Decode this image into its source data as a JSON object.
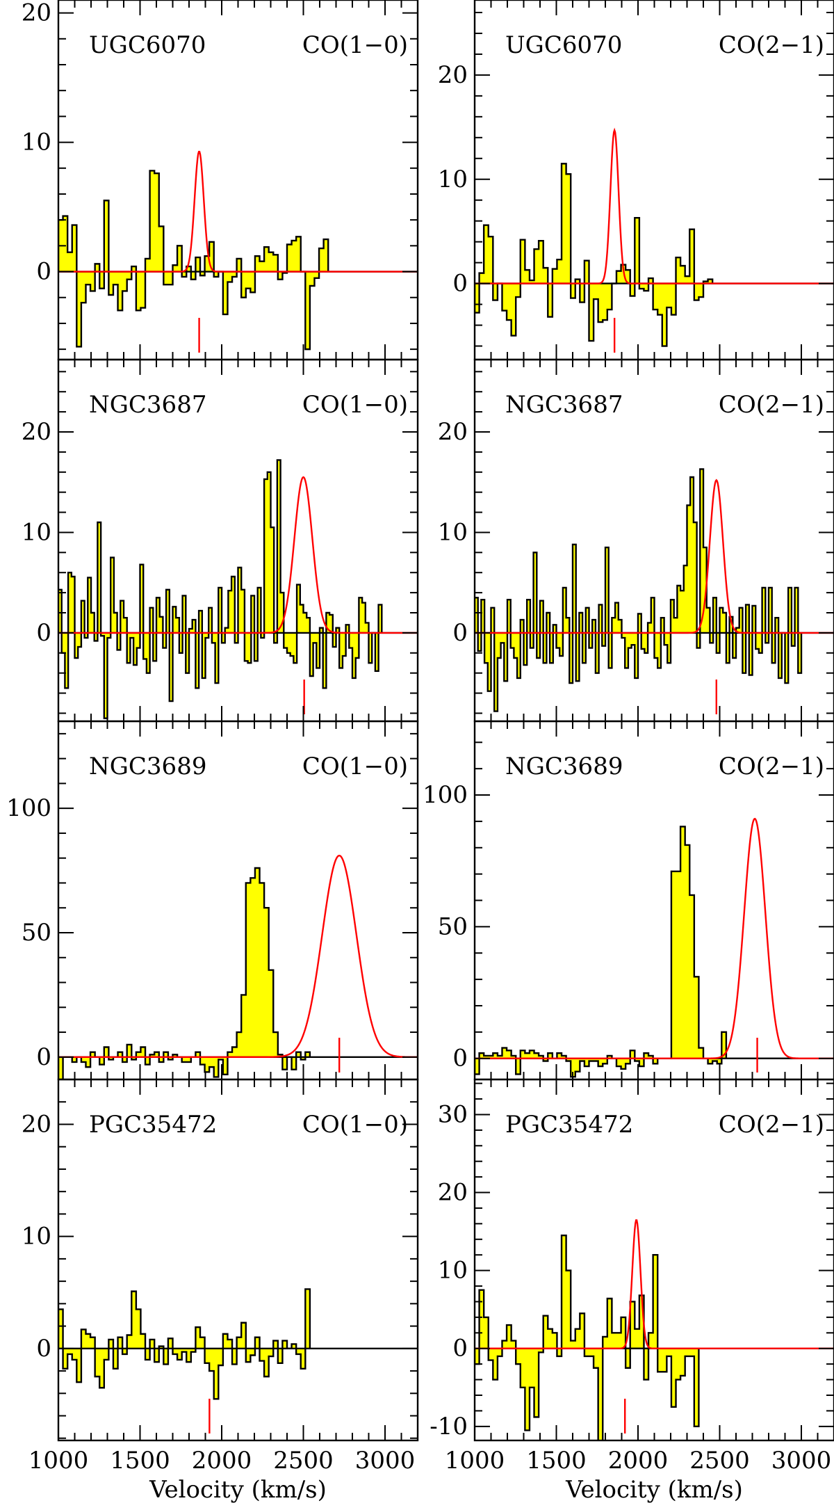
{
  "chart_data": {
    "type": "step-area spectra grid",
    "xlabel": "Velocity (km/s)",
    "xlim": [
      1000,
      3200
    ],
    "xticks": [
      1000,
      1500,
      2000,
      2500,
      3000
    ],
    "x_start": 1000,
    "colors": {
      "fill": "#ffff00",
      "fit": "#ff0000",
      "line": "#000000"
    },
    "panels": [
      {
        "galaxy": "UGC6070",
        "transition": "CO(1−0)",
        "ylim": [
          -6.8,
          21
        ],
        "yticks": [
          0,
          10,
          20
        ],
        "minor": 2,
        "channel_width": 28,
        "values": [
          4,
          4.3,
          1.5,
          3.6,
          -5.8,
          -2.4,
          -1,
          -1.5,
          0.6,
          -1.3,
          5.5,
          -1.8,
          -1,
          -3,
          -1.5,
          -0.6,
          0.4,
          -3,
          -2.8,
          1,
          7.8,
          7.6,
          3.5,
          -1,
          -1,
          0.5,
          2,
          -0.4,
          0.4,
          -0.6,
          1.1,
          -0.3,
          1.2,
          2.3,
          -0.4,
          0,
          -3.3,
          -0.8,
          -0.4,
          1,
          -2,
          -1.3,
          -1.6,
          1.2,
          0.8,
          1.9,
          1.5,
          1.3,
          -0.6,
          -0.1,
          2.1,
          2.4,
          2.7,
          0,
          -6,
          -1.1,
          -0.5,
          1.8,
          2.5
        ],
        "fit": {
          "amp": 9.3,
          "center": 1862,
          "sigma": 28
        },
        "marker": 1862
      },
      {
        "galaxy": "UGC6070",
        "transition": "CO(2−1)",
        "ylim": [
          -7.3,
          27.2
        ],
        "yticks": [
          0,
          10,
          20
        ],
        "minor": 2,
        "channel_width": 28,
        "values": [
          -2.8,
          1,
          5.6,
          4.5,
          -1.6,
          0,
          -2.6,
          -3.5,
          -5,
          -1.3,
          4.2,
          1.3,
          0.3,
          3.3,
          4.1,
          1.5,
          -3.2,
          1.4,
          2.3,
          11.5,
          10.5,
          -1.4,
          0.4,
          -1.8,
          2.2,
          -5.5,
          -1.5,
          -3.7,
          -3.5,
          -2.5,
          0,
          1.2,
          1.8,
          1.3,
          -1.2,
          6.3,
          -0.5,
          -0.7,
          0.5,
          -2.5,
          -3,
          -6,
          -2.3,
          -3,
          2.5,
          1.7,
          0.7,
          5.2,
          -1.6,
          -1.3,
          0.2,
          0.4
        ],
        "fit": {
          "amp": 14.7,
          "center": 1856,
          "sigma": 25
        },
        "marker": 1856
      },
      {
        "galaxy": "NGC3687",
        "transition": "CO(1−0)",
        "ylim": [
          -8.8,
          27.2
        ],
        "yticks": [
          0,
          10,
          20
        ],
        "minor": 2,
        "channel_width": 20,
        "values": [
          4.3,
          -2,
          -5.5,
          6,
          5.6,
          -2.5,
          -1.4,
          3.2,
          -0.5,
          5.5,
          2,
          -0.8,
          11,
          -0.3,
          -8.5,
          -0.5,
          7.5,
          2,
          -1.7,
          3.2,
          1.5,
          -3,
          -0.5,
          -3.2,
          -1.5,
          6.8,
          -2.6,
          -4,
          2.5,
          -2.8,
          3.5,
          1.6,
          -1.5,
          4.3,
          -6.8,
          2.6,
          1.5,
          -2,
          3.7,
          -4,
          0.4,
          1.3,
          -5.5,
          2.2,
          -4.5,
          -0.5,
          2.5,
          -1,
          -5,
          4.5,
          -1,
          0.5,
          4.2,
          5.6,
          -1,
          6.5,
          4.3,
          -2.8,
          -3,
          3.7,
          -2.8,
          4.5,
          -0.5,
          15.3,
          16,
          10.5,
          -1,
          17.2,
          4,
          -1.5,
          -2,
          -2.3,
          -3,
          4.8,
          2.8,
          2,
          1.5,
          -4.3,
          -1,
          -3.5,
          0.5,
          -5.5,
          2,
          1.8,
          -1.4,
          0.5,
          -3.5,
          -2.3,
          0.8,
          -1.5,
          -4.5,
          -2.5,
          3.5,
          3,
          1,
          -3,
          0,
          -3.8,
          2.8
        ],
        "fit": {
          "amp": 15.5,
          "center": 2500,
          "sigma": 55
        },
        "marker": 2505
      },
      {
        "galaxy": "NGC3687",
        "transition": "CO(2−1)",
        "ylim": [
          -8.8,
          27.2
        ],
        "yticks": [
          0,
          10,
          20
        ],
        "minor": 2,
        "channel_width": 20,
        "values": [
          3.5,
          -1.8,
          3.3,
          -3,
          -5.8,
          2.5,
          -7.8,
          -2.5,
          -1,
          -4.8,
          3.3,
          -1.5,
          -2.5,
          -4.5,
          1.3,
          -3.2,
          3.3,
          -1.5,
          8,
          -2.5,
          3.2,
          -3,
          2,
          -3,
          0.8,
          -1.5,
          -2.3,
          4.5,
          1.5,
          -5,
          8.8,
          -4.8,
          2,
          -3,
          2.5,
          -1.5,
          1.3,
          -4,
          2.8,
          -1.3,
          8.5,
          -3.5,
          1.5,
          3,
          1.3,
          -0.5,
          -3.5,
          -1.5,
          -1.2,
          -4.5,
          1.9,
          -1.6,
          -2,
          1,
          3.5,
          -2.5,
          -3.5,
          1.5,
          -1.2,
          -3,
          3.3,
          1.5,
          4.7,
          4.2,
          6.7,
          12.7,
          15.5,
          11,
          -1.5,
          16.3,
          8.5,
          2.5,
          -1,
          3.5,
          -2,
          2.5,
          2,
          -3,
          1.6,
          -2.5,
          0.5,
          2.5,
          -4,
          2.8,
          -4.2,
          2.7,
          -1.6,
          -2,
          4.5,
          -1,
          4.5,
          -3,
          1.5,
          -4.5,
          0,
          -5,
          4.5,
          -1.3,
          4.5,
          -4
        ],
        "fit": {
          "amp": 15.2,
          "center": 2480,
          "sigma": 40
        },
        "marker": 2480
      },
      {
        "galaxy": "NGC3689",
        "transition": "CO(1−0)",
        "ylim": [
          -9,
          135
        ],
        "yticks": [
          0,
          50,
          100
        ],
        "minor": 10,
        "channel_width": 28,
        "values": [
          -9,
          0,
          0,
          -2,
          0,
          -2,
          -4,
          2,
          0,
          -3,
          4,
          -1,
          0,
          2,
          -2,
          5,
          -1,
          2,
          4,
          -3,
          1,
          2,
          -2,
          2,
          -1,
          1,
          0,
          -2,
          -2,
          0,
          2,
          -3,
          -6,
          -4,
          -8,
          -1,
          -7,
          2,
          4,
          10,
          25,
          70,
          72,
          76,
          70,
          60,
          35,
          10,
          1,
          -5,
          0,
          -5,
          2,
          -1,
          2
        ],
        "fit": {
          "amp": 81,
          "center": 2720,
          "sigma": 105
        },
        "marker": 2720
      },
      {
        "galaxy": "NGC3689",
        "transition": "CO(2−1)",
        "ylim": [
          -8,
          128
        ],
        "yticks": [
          0,
          50,
          100
        ],
        "minor": 10,
        "channel_width": 28,
        "values": [
          -6,
          2,
          1,
          1,
          2,
          1,
          4,
          3,
          1,
          -6,
          3,
          2,
          3,
          2,
          1,
          -1,
          2,
          0,
          2,
          1,
          -1,
          -7,
          -5,
          -1,
          -3,
          -1,
          -1,
          -3,
          -2,
          1,
          0,
          -3,
          -4,
          -2,
          3,
          -1,
          -3,
          2,
          1,
          -2,
          0,
          0,
          0,
          71,
          71,
          88,
          81,
          62,
          31,
          4,
          0,
          -2,
          -1,
          -2,
          10
        ],
        "fit": {
          "amp": 91,
          "center": 2715,
          "sigma": 65
        },
        "marker": 2730
      },
      {
        "galaxy": "PGC35472",
        "transition": "CO(1−0)",
        "ylim": [
          -8.2,
          24
        ],
        "yticks": [
          0,
          10,
          20
        ],
        "minor": 2,
        "channel_width": 28,
        "values": [
          3.5,
          -1.8,
          -0.5,
          -1,
          -3,
          1.7,
          1.3,
          1,
          -2.5,
          -3.5,
          -1,
          0.8,
          -1.8,
          1,
          -0.5,
          1.2,
          5.1,
          3.5,
          1.3,
          -1,
          0.8,
          -1.2,
          0.2,
          -1.4,
          0.9,
          -0.5,
          -1,
          -0.3,
          -1.2,
          -0.3,
          1.9,
          1,
          -1.3,
          -2,
          -4.5,
          -1.5,
          1.3,
          0.8,
          -1.4,
          1,
          2.3,
          -1.2,
          -0.6,
          1,
          -1.1,
          -2.5,
          -0.7,
          0.7,
          -1.3,
          0.7,
          0,
          0.4,
          -0.5,
          -1.8,
          5.3
        ],
        "marker": 1925
      },
      {
        "galaxy": "PGC35472",
        "transition": "CO(2−1)",
        "ylim": [
          -11.8,
          34.5
        ],
        "yticks": [
          -10,
          0,
          10,
          20,
          30
        ],
        "minor": 2,
        "channel_width": 28,
        "values": [
          -2,
          7.5,
          4,
          -1.5,
          -4,
          -1,
          1,
          3,
          1,
          -2,
          -5,
          -10.5,
          -5,
          -8.8,
          -0.5,
          4.2,
          2.5,
          2,
          -1,
          14.5,
          10,
          1,
          2.5,
          4.5,
          -1,
          -1,
          -2.5,
          -15,
          1.5,
          6.4,
          2,
          2,
          4,
          -2.5,
          6,
          2.5,
          6.8,
          -4,
          2,
          12,
          -3,
          -3,
          -1,
          -7.5,
          -4,
          -3.5,
          -1,
          -1,
          -10
        ],
        "fit": {
          "amp": 16.5,
          "center": 1990,
          "sigma": 25
        },
        "marker": 1920
      }
    ]
  }
}
